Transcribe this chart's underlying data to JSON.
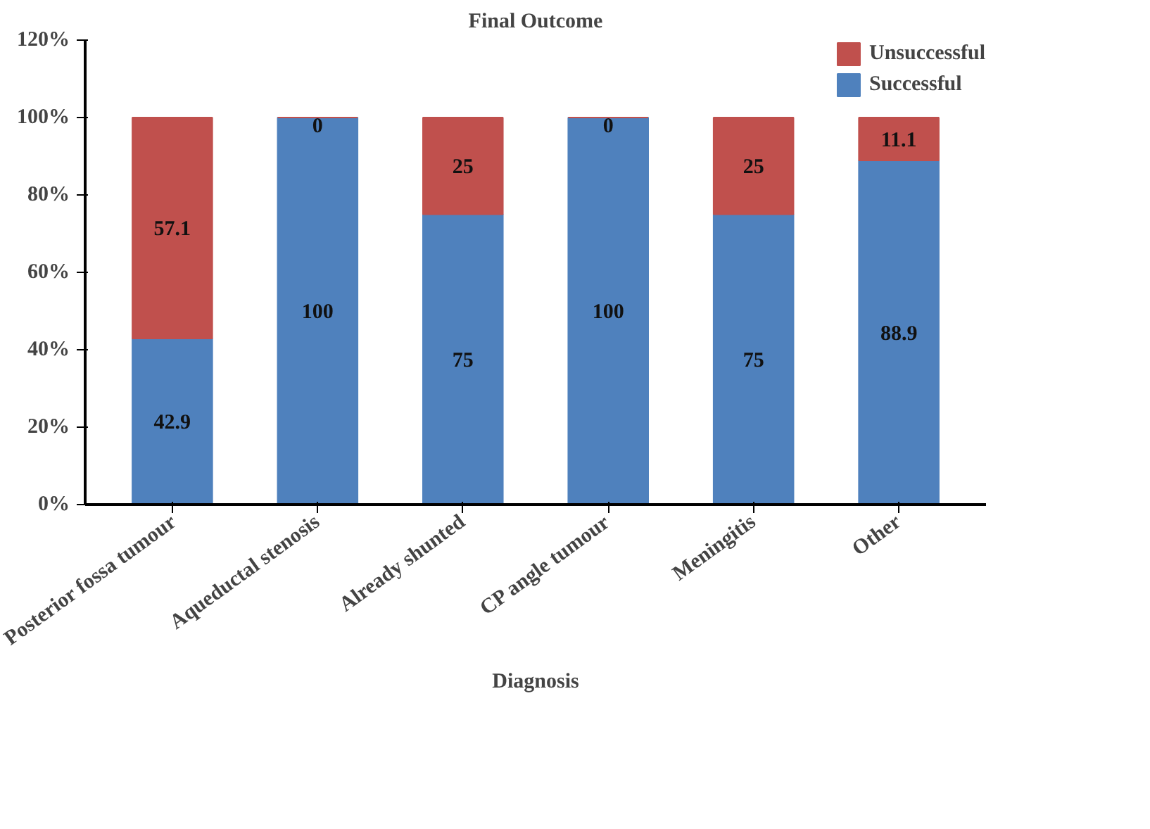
{
  "chart_data": {
    "type": "bar",
    "title": "Final Outcome",
    "xlabel": "Diagnosis",
    "categories": [
      "Posterior fossa tumour",
      "Aqueductal stenosis",
      "Already shunted",
      "CP angle tumour",
      "Meningitis",
      "Other"
    ],
    "series": [
      {
        "name": "Successful",
        "color": "#4f81bd",
        "values": [
          42.9,
          100,
          75,
          100,
          75,
          88.9
        ]
      },
      {
        "name": "Unsuccessful",
        "color": "#c0504d",
        "values": [
          57.1,
          0,
          25,
          0,
          25,
          11.1
        ]
      }
    ],
    "stacked": true,
    "data_labels": true,
    "ylim": [
      0,
      120
    ],
    "yticks": [
      {
        "value": 0,
        "label": "0%"
      },
      {
        "value": 20,
        "label": "20%"
      },
      {
        "value": 40,
        "label": "40%"
      },
      {
        "value": 60,
        "label": "60%"
      },
      {
        "value": 80,
        "label": "80%"
      },
      {
        "value": 100,
        "label": "100%"
      },
      {
        "value": 120,
        "label": "120%"
      }
    ],
    "grid": false,
    "legend": "top right"
  }
}
